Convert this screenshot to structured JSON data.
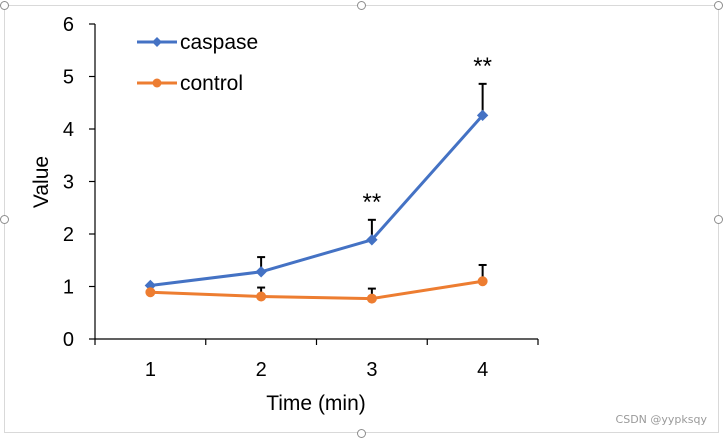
{
  "watermark": "CSDN @yypksqy",
  "colors": {
    "caspase": "#4472C4",
    "control": "#ED7D31",
    "axis": "#000000"
  },
  "chart_data": {
    "type": "line",
    "title": "",
    "xlabel": "Time (min)",
    "ylabel": "Value",
    "categories": [
      "1",
      "2",
      "3",
      "4"
    ],
    "ylim": [
      0,
      6
    ],
    "yticks": [
      "0",
      "1",
      "2",
      "3",
      "4",
      "5",
      "6"
    ],
    "grid": false,
    "legend_position": "top-left",
    "series": [
      {
        "name": "caspase",
        "marker": "diamond",
        "color": "#4472C4",
        "values": [
          1.02,
          1.28,
          1.89,
          4.26
        ],
        "errors": [
          0.0,
          0.28,
          0.38,
          0.6
        ]
      },
      {
        "name": "control",
        "marker": "circle",
        "color": "#ED7D31",
        "values": [
          0.89,
          0.81,
          0.77,
          1.1
        ],
        "errors": [
          0.0,
          0.17,
          0.19,
          0.31
        ]
      }
    ],
    "annotations": [
      {
        "text": "**",
        "category_index": 2,
        "series": "caspase"
      },
      {
        "text": "**",
        "category_index": 3,
        "series": "caspase"
      }
    ]
  }
}
